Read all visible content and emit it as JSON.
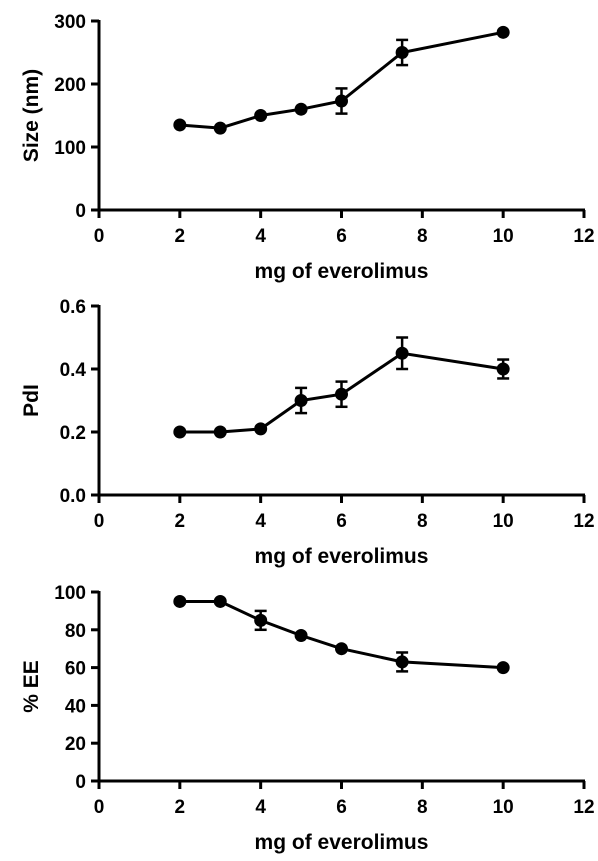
{
  "chart_data": [
    {
      "type": "line",
      "title": "",
      "xlabel": "mg of everolimus",
      "ylabel": "Size (nm)",
      "xlim": [
        0,
        12
      ],
      "ylim": [
        0,
        300
      ],
      "xticks": [
        0,
        2,
        4,
        6,
        8,
        10,
        12
      ],
      "yticks": [
        0,
        100,
        200,
        300
      ],
      "grid": false,
      "legend": "none",
      "series": [
        {
          "x": [
            2,
            3,
            4,
            5,
            6,
            7.5,
            10
          ],
          "y": [
            135,
            130,
            150,
            160,
            173,
            250,
            282
          ],
          "error": [
            4,
            5,
            5,
            6,
            20,
            20,
            4
          ],
          "color": "#000000"
        }
      ]
    },
    {
      "type": "line",
      "title": "",
      "xlabel": "mg of everolimus",
      "ylabel": "PdI",
      "xlim": [
        0,
        12
      ],
      "ylim": [
        0,
        0.6
      ],
      "xticks": [
        0,
        2,
        4,
        6,
        8,
        10,
        12
      ],
      "yticks": [
        "0.0",
        "0.2",
        "0.4",
        "0.6"
      ],
      "grid": false,
      "legend": "none",
      "series": [
        {
          "x": [
            2,
            3,
            4,
            5,
            6,
            7.5,
            10
          ],
          "y": [
            0.2,
            0.2,
            0.21,
            0.3,
            0.32,
            0.45,
            0.4
          ],
          "error": [
            0.005,
            0.005,
            0.008,
            0.04,
            0.04,
            0.05,
            0.03
          ],
          "color": "#000000"
        }
      ]
    },
    {
      "type": "line",
      "title": "",
      "xlabel": "mg of everolimus",
      "ylabel": "% EE",
      "xlim": [
        0,
        12
      ],
      "ylim": [
        0,
        100
      ],
      "xticks": [
        0,
        2,
        4,
        6,
        8,
        10,
        12
      ],
      "yticks": [
        0,
        20,
        40,
        60,
        80,
        100
      ],
      "grid": false,
      "legend": "none",
      "series": [
        {
          "x": [
            2,
            3,
            4,
            5,
            6,
            7.5,
            10
          ],
          "y": [
            95,
            95,
            85,
            77,
            70,
            63,
            60
          ],
          "error": [
            1,
            1,
            5,
            2,
            2,
            5,
            1
          ],
          "color": "#000000"
        }
      ]
    }
  ]
}
